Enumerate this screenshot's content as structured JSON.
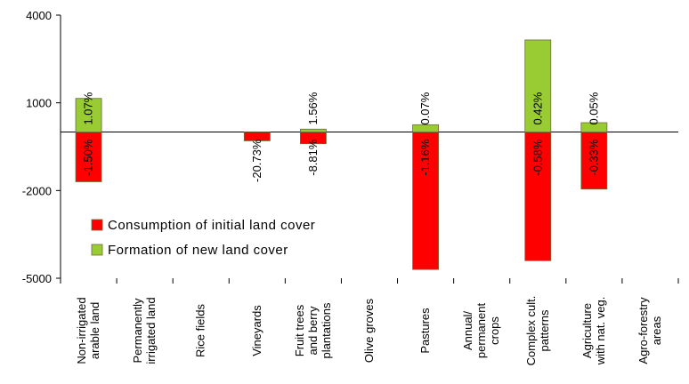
{
  "chart_data": {
    "type": "bar",
    "title": "",
    "xlabel": "",
    "ylabel": "",
    "ylim": [
      -5000,
      4000
    ],
    "yticks": [
      4000,
      1000,
      -2000,
      -5000
    ],
    "grid": false,
    "legend_position": "lower-left",
    "categories": [
      [
        "Non-irrigated",
        "arable land"
      ],
      [
        "Permanently",
        "irrigated land"
      ],
      [
        "Rice fields"
      ],
      [
        "Vineyards"
      ],
      [
        "Fruit trees",
        "and berry",
        "plantations"
      ],
      [
        "Olive groves"
      ],
      [
        "Pastures"
      ],
      [
        "Annual/",
        "permanent",
        "crops"
      ],
      [
        "Complex cult.",
        "patterns"
      ],
      [
        "Agriculture",
        "with nat. veg."
      ],
      [
        "Agro-forestry",
        "areas"
      ]
    ],
    "series": [
      {
        "name": "Consumption of initial land cover",
        "color": "#ff0000",
        "values": [
          -1700,
          null,
          null,
          -300,
          -400,
          null,
          -4700,
          null,
          -4400,
          -1950,
          null
        ],
        "labels": [
          "-1.50%",
          null,
          null,
          "-20.73%",
          "-8.81%",
          null,
          "-1.16%",
          null,
          "-0.58%",
          "-0.33%",
          null
        ]
      },
      {
        "name": "Formation of new land cover",
        "color": "#99cc33",
        "values": [
          1150,
          null,
          null,
          null,
          100,
          null,
          250,
          null,
          3150,
          320,
          null
        ],
        "labels": [
          "1.07%",
          null,
          null,
          null,
          "1.56%",
          null,
          "0.07%",
          null,
          "0.42%",
          "0.05%",
          null
        ]
      }
    ]
  }
}
